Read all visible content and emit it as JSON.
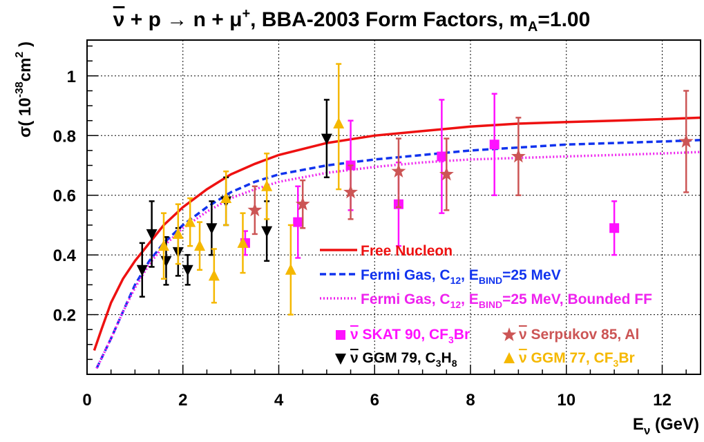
{
  "chart_data": {
    "type": "scatter",
    "title": {
      "nu": "ν",
      "body": " + p → n + μ",
      "sup": "+",
      "rest": ", BBA-2003 Form Factors, m",
      "sub": "A",
      "tail": "=1.00"
    },
    "xlabel": {
      "main": "E",
      "sub": "ν",
      "unit": " (GeV)"
    },
    "ylabel": {
      "pre": "σ( 10",
      "exp": "-38",
      "mid": "cm",
      "sq": "2",
      "post": " )"
    },
    "xlim": [
      0,
      12.8
    ],
    "ylim": [
      0,
      1.12
    ],
    "xticks": [
      0,
      2,
      4,
      6,
      8,
      10,
      12
    ],
    "yticks": [
      0.2,
      0.4,
      0.6,
      0.8,
      1
    ],
    "xtick_labels": [
      "0",
      "2",
      "4",
      "6",
      "8",
      "10",
      "12"
    ],
    "ytick_labels": [
      "0.2",
      "0.4",
      "0.6",
      "0.8",
      "1"
    ],
    "grid": true,
    "curves": [
      {
        "name": "Free Nucleon",
        "color": "#ee1111",
        "dash": "solid",
        "points": [
          [
            0.15,
            0.08
          ],
          [
            0.3,
            0.15
          ],
          [
            0.5,
            0.24
          ],
          [
            0.75,
            0.32
          ],
          [
            1.0,
            0.38
          ],
          [
            1.3,
            0.44
          ],
          [
            1.6,
            0.5
          ],
          [
            2.0,
            0.56
          ],
          [
            2.5,
            0.62
          ],
          [
            3.0,
            0.67
          ],
          [
            3.5,
            0.705
          ],
          [
            4.0,
            0.735
          ],
          [
            5.0,
            0.775
          ],
          [
            6.0,
            0.8
          ],
          [
            7.0,
            0.815
          ],
          [
            8.0,
            0.83
          ],
          [
            9.0,
            0.84
          ],
          [
            10.0,
            0.845
          ],
          [
            11.0,
            0.85
          ],
          [
            12.0,
            0.855
          ],
          [
            12.8,
            0.86
          ]
        ]
      },
      {
        "name": "Fermi Gas, C12, EBIND=25 MeV",
        "color": "#1133ee",
        "dash": "dashed",
        "points": [
          [
            0.2,
            0.02
          ],
          [
            0.35,
            0.07
          ],
          [
            0.5,
            0.12
          ],
          [
            0.75,
            0.21
          ],
          [
            1.0,
            0.3
          ],
          [
            1.3,
            0.38
          ],
          [
            1.6,
            0.44
          ],
          [
            2.0,
            0.5
          ],
          [
            2.5,
            0.56
          ],
          [
            3.0,
            0.61
          ],
          [
            3.5,
            0.645
          ],
          [
            4.0,
            0.67
          ],
          [
            5.0,
            0.7
          ],
          [
            6.0,
            0.72
          ],
          [
            7.0,
            0.735
          ],
          [
            8.0,
            0.75
          ],
          [
            9.0,
            0.76
          ],
          [
            10.0,
            0.77
          ],
          [
            11.0,
            0.775
          ],
          [
            12.0,
            0.78
          ],
          [
            12.8,
            0.785
          ]
        ]
      },
      {
        "name": "Fermi Gas, C12, EBIND=25 MeV, Bounded FF",
        "color": "#ee22ee",
        "dash": "dotted",
        "points": [
          [
            0.2,
            0.02
          ],
          [
            0.35,
            0.07
          ],
          [
            0.5,
            0.12
          ],
          [
            0.75,
            0.21
          ],
          [
            1.0,
            0.29
          ],
          [
            1.3,
            0.37
          ],
          [
            1.6,
            0.43
          ],
          [
            2.0,
            0.49
          ],
          [
            2.5,
            0.545
          ],
          [
            3.0,
            0.59
          ],
          [
            3.5,
            0.62
          ],
          [
            4.0,
            0.645
          ],
          [
            5.0,
            0.675
          ],
          [
            6.0,
            0.695
          ],
          [
            7.0,
            0.71
          ],
          [
            8.0,
            0.72
          ],
          [
            9.0,
            0.725
          ],
          [
            10.0,
            0.73
          ],
          [
            11.0,
            0.735
          ],
          [
            12.0,
            0.74
          ],
          [
            12.8,
            0.745
          ]
        ]
      }
    ],
    "datasets": [
      {
        "name": "SKAT 90",
        "color": "#ff11ff",
        "marker": "square",
        "points": [
          [
            3.3,
            0.44,
            0.4,
            0.48
          ],
          [
            4.4,
            0.51,
            0.39,
            0.63
          ],
          [
            5.5,
            0.7,
            0.55,
            0.85
          ],
          [
            6.5,
            0.57,
            0.43,
            0.71
          ],
          [
            7.4,
            0.73,
            0.54,
            0.92
          ],
          [
            8.5,
            0.77,
            0.6,
            0.94
          ],
          [
            11.0,
            0.49,
            0.4,
            0.58
          ]
        ]
      },
      {
        "name": "Serpukov 85",
        "color": "#cc5555",
        "marker": "star",
        "points": [
          [
            3.5,
            0.55,
            0.47,
            0.63
          ],
          [
            4.5,
            0.57,
            0.49,
            0.65
          ],
          [
            5.5,
            0.61,
            0.52,
            0.7
          ],
          [
            6.5,
            0.68,
            0.56,
            0.79
          ],
          [
            7.5,
            0.67,
            0.55,
            0.79
          ],
          [
            9.0,
            0.73,
            0.6,
            0.86
          ],
          [
            12.5,
            0.78,
            0.61,
            0.95
          ]
        ]
      },
      {
        "name": "GGM 79",
        "color": "#000000",
        "marker": "triangle-down",
        "points": [
          [
            1.15,
            0.35,
            0.26,
            0.44
          ],
          [
            1.35,
            0.47,
            0.36,
            0.58
          ],
          [
            1.65,
            0.38,
            0.3,
            0.46
          ],
          [
            1.9,
            0.41,
            0.33,
            0.49
          ],
          [
            2.1,
            0.35,
            0.3,
            0.4
          ],
          [
            2.6,
            0.49,
            0.4,
            0.58
          ],
          [
            2.9,
            0.58,
            0.5,
            0.66
          ],
          [
            3.75,
            0.48,
            0.38,
            0.58
          ],
          [
            5.0,
            0.79,
            0.66,
            0.92
          ]
        ]
      },
      {
        "name": "GGM 77",
        "color": "#f5b800",
        "marker": "triangle-up",
        "points": [
          [
            1.6,
            0.43,
            0.32,
            0.54
          ],
          [
            1.9,
            0.47,
            0.37,
            0.57
          ],
          [
            2.15,
            0.51,
            0.43,
            0.59
          ],
          [
            2.35,
            0.43,
            0.35,
            0.51
          ],
          [
            2.65,
            0.33,
            0.24,
            0.42
          ],
          [
            2.9,
            0.59,
            0.5,
            0.68
          ],
          [
            3.25,
            0.44,
            0.34,
            0.54
          ],
          [
            3.75,
            0.63,
            0.52,
            0.74
          ],
          [
            4.25,
            0.35,
            0.2,
            0.5
          ],
          [
            5.25,
            0.84,
            0.62,
            1.04
          ]
        ]
      }
    ],
    "legend_upper": [
      {
        "series": 0,
        "line": "Free Nucleon"
      },
      {
        "series": 1,
        "pre": "Fermi Gas, C",
        "sub1": "12",
        "mid": ", E",
        "sub2": "BIND",
        "post": "=25 MeV"
      },
      {
        "series": 2,
        "pre": "Fermi Gas, C",
        "sub1": "12",
        "mid": ", E",
        "sub2": "BIND",
        "post": "=25 MeV, Bounded FF"
      }
    ],
    "legend_lower": [
      {
        "dataset": 0,
        "nu": "ν",
        "pre": " SKAT 90, CF",
        "sub": "3",
        "post": "Br"
      },
      {
        "dataset": 1,
        "nu": "ν",
        "pre": " Serpukov 85, Al",
        "sub": "",
        "post": ""
      },
      {
        "dataset": 2,
        "nu": "ν",
        "pre": " GGM 79, C",
        "sub": "3",
        "post": "H",
        "sub2": "8"
      },
      {
        "dataset": 3,
        "nu": "ν",
        "pre": " GGM 77, CF",
        "sub": "3",
        "post": "Br"
      }
    ]
  }
}
